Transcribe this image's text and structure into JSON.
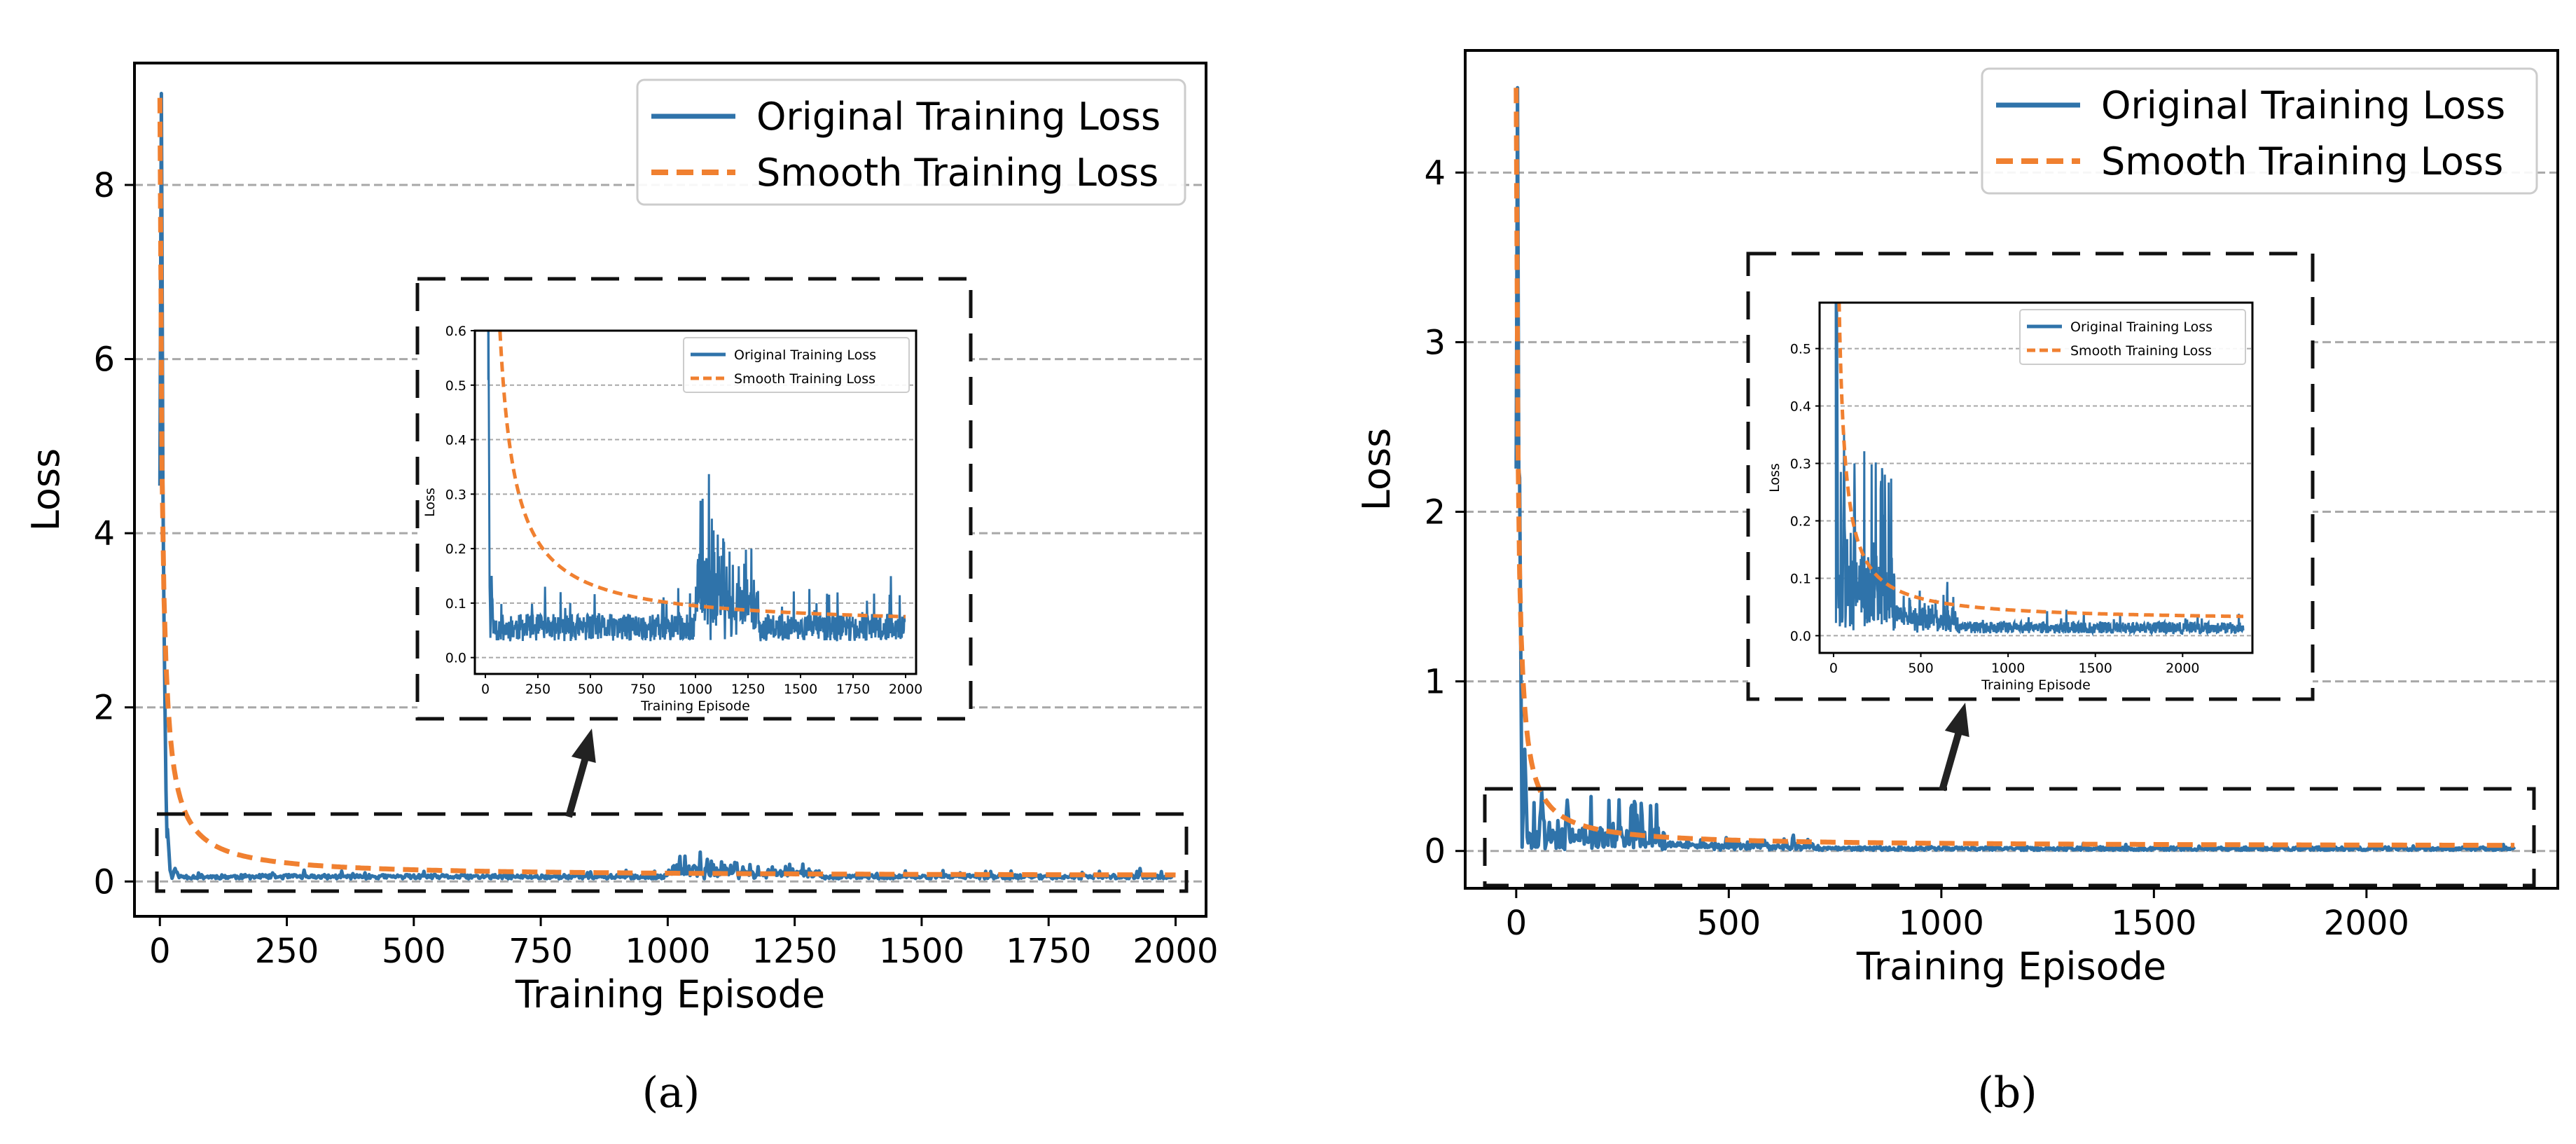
{
  "chart_data": [
    {
      "id": "a",
      "type": "line",
      "caption": "(a)",
      "xlabel": "Training Episode",
      "ylabel": "Loss",
      "xlim": [
        -50,
        2060
      ],
      "ylim": [
        -0.4,
        9.4
      ],
      "xticks": [
        0,
        250,
        500,
        750,
        1000,
        1250,
        1500,
        1750,
        2000
      ],
      "yticks": [
        0,
        2,
        4,
        6,
        8
      ],
      "grid": "y-dashed",
      "legend_position": "upper-right",
      "series": [
        {
          "name": "Original Training Loss",
          "color": "#2f73aa",
          "style": "solid",
          "n": 2000,
          "peaks": [
            [
              3,
              9.05
            ],
            [
              8,
              3.05
            ],
            [
              15,
              0.6
            ],
            [
              30,
              0.15
            ]
          ],
          "base": 0.045,
          "noise": 0.025,
          "bursts": [
            [
              1000,
              1140,
              0.12
            ],
            [
              1140,
              1300,
              0.06
            ]
          ]
        },
        {
          "name": "Smooth Training Loss",
          "color": "#f08030",
          "style": "dashed",
          "start": 9.0,
          "end": 0.055,
          "n": 2000
        }
      ],
      "zoom_region": {
        "x": [
          -40,
          2050
        ],
        "y": [
          -0.15,
          0.72
        ]
      },
      "inset": {
        "xlim": [
          -50,
          2050
        ],
        "ylim": [
          -0.03,
          0.6
        ],
        "xticks": [
          0,
          250,
          500,
          750,
          1000,
          1250,
          1500,
          1750,
          2000
        ],
        "yticks": [
          0.0,
          0.1,
          0.2,
          0.3,
          0.4,
          0.5,
          0.6
        ],
        "ytick_labels": [
          "0.0",
          "0.1",
          "0.2",
          "0.3",
          "0.4",
          "0.5",
          "0.6"
        ],
        "xlabel": "Training Episode",
        "ylabel": "Loss",
        "legend": [
          "Original Training Loss",
          "Smooth Training Loss"
        ]
      }
    },
    {
      "id": "b",
      "type": "line",
      "caption": "(b)",
      "xlabel": "Training Episode",
      "ylabel": "Loss",
      "xlim": [
        -120,
        2450
      ],
      "ylim": [
        -0.22,
        4.72
      ],
      "xticks": [
        0,
        500,
        1000,
        1500,
        2000
      ],
      "yticks": [
        0,
        1,
        2,
        3,
        4
      ],
      "grid": "y-dashed",
      "legend_position": "upper-right",
      "series": [
        {
          "name": "Original Training Loss",
          "color": "#2f73aa",
          "style": "solid",
          "n": 2350,
          "peaks": [
            [
              3,
              4.5
            ],
            [
              8,
              2.2
            ],
            [
              20,
              0.6
            ],
            [
              60,
              0.35
            ],
            [
              120,
              0.3
            ]
          ],
          "base": 0.01,
          "noise": 0.01,
          "bursts": [
            [
              20,
              350,
              0.12
            ],
            [
              350,
              700,
              0.03
            ]
          ]
        },
        {
          "name": "Smooth Training Loss",
          "color": "#f08030",
          "style": "dashed",
          "start": 4.5,
          "end": 0.025,
          "n": 2350
        }
      ],
      "zoom_region": {
        "x": [
          -80,
          2370
        ],
        "y": [
          -0.08,
          0.48
        ]
      },
      "inset": {
        "xlim": [
          -80,
          2400
        ],
        "ylim": [
          -0.03,
          0.58
        ],
        "xticks": [
          0,
          500,
          1000,
          1500,
          2000
        ],
        "yticks": [
          0.0,
          0.1,
          0.2,
          0.3,
          0.4,
          0.5
        ],
        "ytick_labels": [
          "0.0",
          "0.1",
          "0.2",
          "0.3",
          "0.4",
          "0.5"
        ],
        "xlabel": "Training Episode",
        "ylabel": "Loss",
        "legend": [
          "Original Training Loss",
          "Smooth Training Loss"
        ]
      }
    }
  ]
}
